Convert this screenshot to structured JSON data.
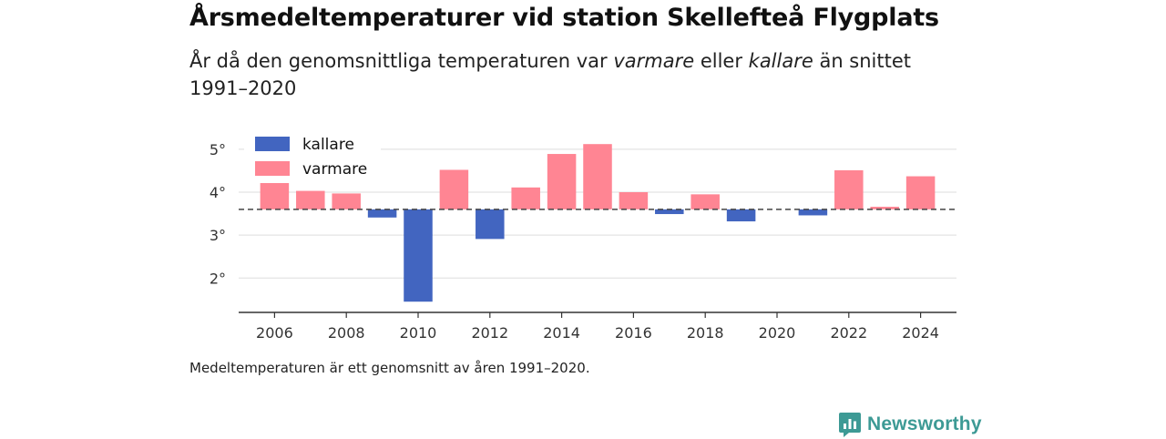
{
  "header": {
    "title": "Årsmedeltemperaturer vid station Skellefteå Flygplats",
    "subtitle_pre": "År då den genomsnittliga temperaturen var ",
    "subtitle_warm": "varmare",
    "subtitle_mid": " eller ",
    "subtitle_cold": "kallare",
    "subtitle_post": " än snittet 1991–2020"
  },
  "footer": {
    "note": "Medeltemperaturen är ett genomsnitt av åren 1991–2020.",
    "brand": "Newsworthy"
  },
  "colors": {
    "warm": "#ff8593",
    "cold": "#4265c0",
    "brand": "#3d9a95"
  },
  "chart_data": {
    "type": "bar",
    "baseline": 3.6,
    "ylim": [
      1.2,
      5.4
    ],
    "yticks": [
      2,
      3,
      4,
      5
    ],
    "ytick_labels": [
      "2°",
      "3°",
      "4°",
      "5°"
    ],
    "xlim": [
      2005,
      2025
    ],
    "xticks": [
      2006,
      2008,
      2010,
      2012,
      2014,
      2016,
      2018,
      2020,
      2022,
      2024
    ],
    "legend": [
      {
        "name": "kallare",
        "color": "#4265c0"
      },
      {
        "name": "varmare",
        "color": "#ff8593"
      }
    ],
    "legend_position": "top-left",
    "x": [
      2006,
      2007,
      2008,
      2009,
      2010,
      2011,
      2012,
      2013,
      2014,
      2015,
      2016,
      2017,
      2018,
      2019,
      2021,
      2022,
      2023,
      2024
    ],
    "values": [
      4.28,
      4.03,
      3.97,
      3.41,
      1.45,
      4.52,
      2.91,
      4.11,
      4.89,
      5.12,
      4.0,
      3.49,
      3.95,
      3.32,
      3.46,
      4.51,
      3.66,
      4.37
    ]
  }
}
